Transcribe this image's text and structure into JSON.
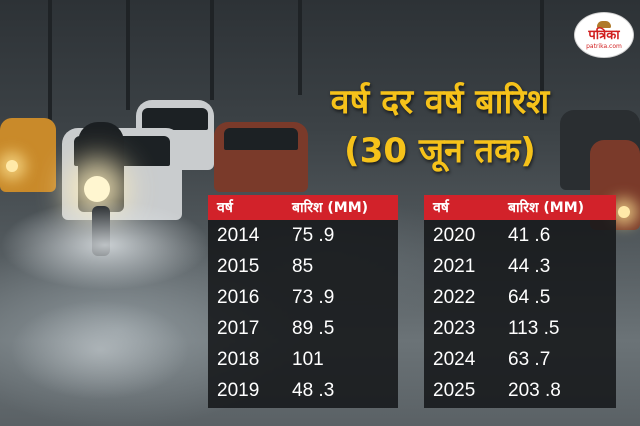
{
  "logo": {
    "name": "पत्रिका",
    "url": "patrika.com"
  },
  "title": {
    "line1": "वर्ष दर वर्ष बारिश",
    "line2": "(30 जून तक)"
  },
  "tables": {
    "left": {
      "headers": [
        "वर्ष",
        "बारिश (MM)"
      ],
      "rows": [
        [
          "2014",
          "75 .9"
        ],
        [
          "2015",
          "85"
        ],
        [
          "2016",
          "73 .9"
        ],
        [
          "2017",
          "89 .5"
        ],
        [
          "2018",
          "101"
        ],
        [
          "2019",
          "48 .3"
        ]
      ]
    },
    "right": {
      "headers": [
        "वर्ष",
        "बारिश (MM)"
      ],
      "rows": [
        [
          "2020",
          "41 .6"
        ],
        [
          "2021",
          "44 .3"
        ],
        [
          "2022",
          "64 .5"
        ],
        [
          "2023",
          "113 .5"
        ],
        [
          "2024",
          "63 .7"
        ],
        [
          "2025",
          "203 .8"
        ]
      ]
    }
  },
  "colors": {
    "title": "#f6c21a",
    "header_bg": "#d2222a",
    "logo_red": "#d11f1f"
  }
}
